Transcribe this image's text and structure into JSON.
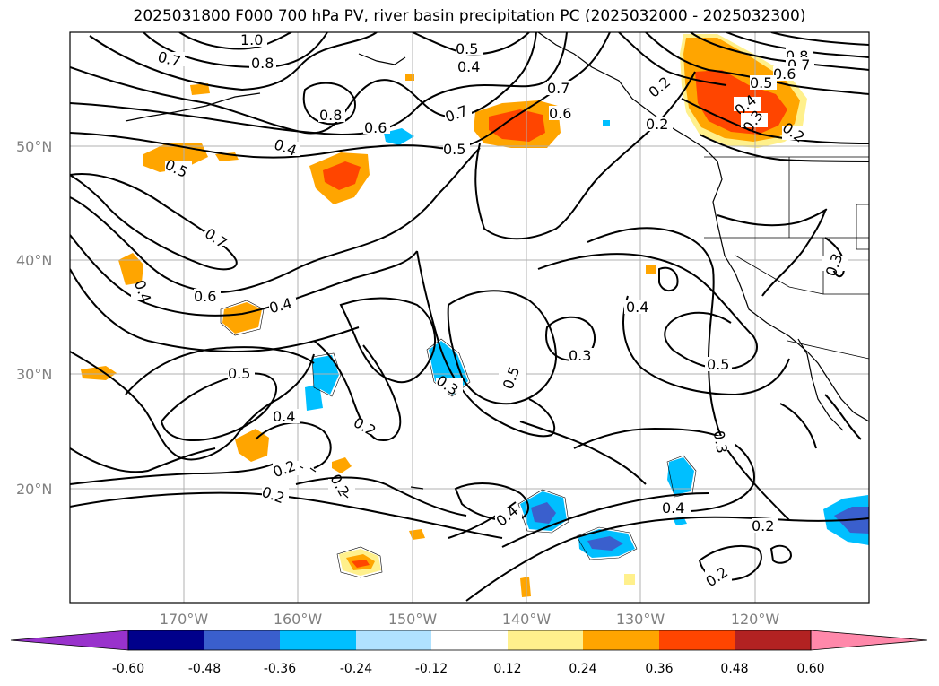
{
  "title": "2025031800 F000 700 hPa PV, river basin precipitation PC (2025032000 - 2025032300)",
  "lat_labels": [
    "50°N",
    "40°N",
    "30°N",
    "20°N"
  ],
  "lon_labels": [
    "170°W",
    "160°W",
    "150°W",
    "140°W",
    "130°W",
    "120°W"
  ],
  "colorbar": {
    "colors": [
      "#9932cc",
      "#00008b",
      "#3a5fcd",
      "#00bfff",
      "#b0e2ff",
      "#ffffff",
      "#fff08c",
      "#ffa500",
      "#ff4500",
      "#b22222",
      "#ff88aa"
    ],
    "ticks": [
      "-0.60",
      "-0.48",
      "-0.36",
      "-0.24",
      "-0.12",
      "0.12",
      "0.24",
      "0.36",
      "0.48",
      "0.60"
    ]
  },
  "contour_labels": [
    "1.0",
    "0.8",
    "0.7",
    "0.8",
    "0.6",
    "0.4",
    "0.5",
    "0.4",
    "0.5",
    "0.7",
    "0.5",
    "0.7",
    "0.6",
    "0.2",
    "0.8",
    "0.7",
    "0.6",
    "0.5",
    "0.4",
    "0.3",
    "0.2",
    "0.7",
    "0.6",
    "0.4",
    "0.4",
    "0.5",
    "0.4",
    "0.2",
    "0.2",
    "0.2",
    "0.3",
    "0.2",
    "0.5",
    "0.3",
    "0.4",
    "0.3",
    "0.5",
    "0.3",
    "0.4",
    "0.2",
    "0.2",
    "0.2",
    "0.4"
  ]
}
